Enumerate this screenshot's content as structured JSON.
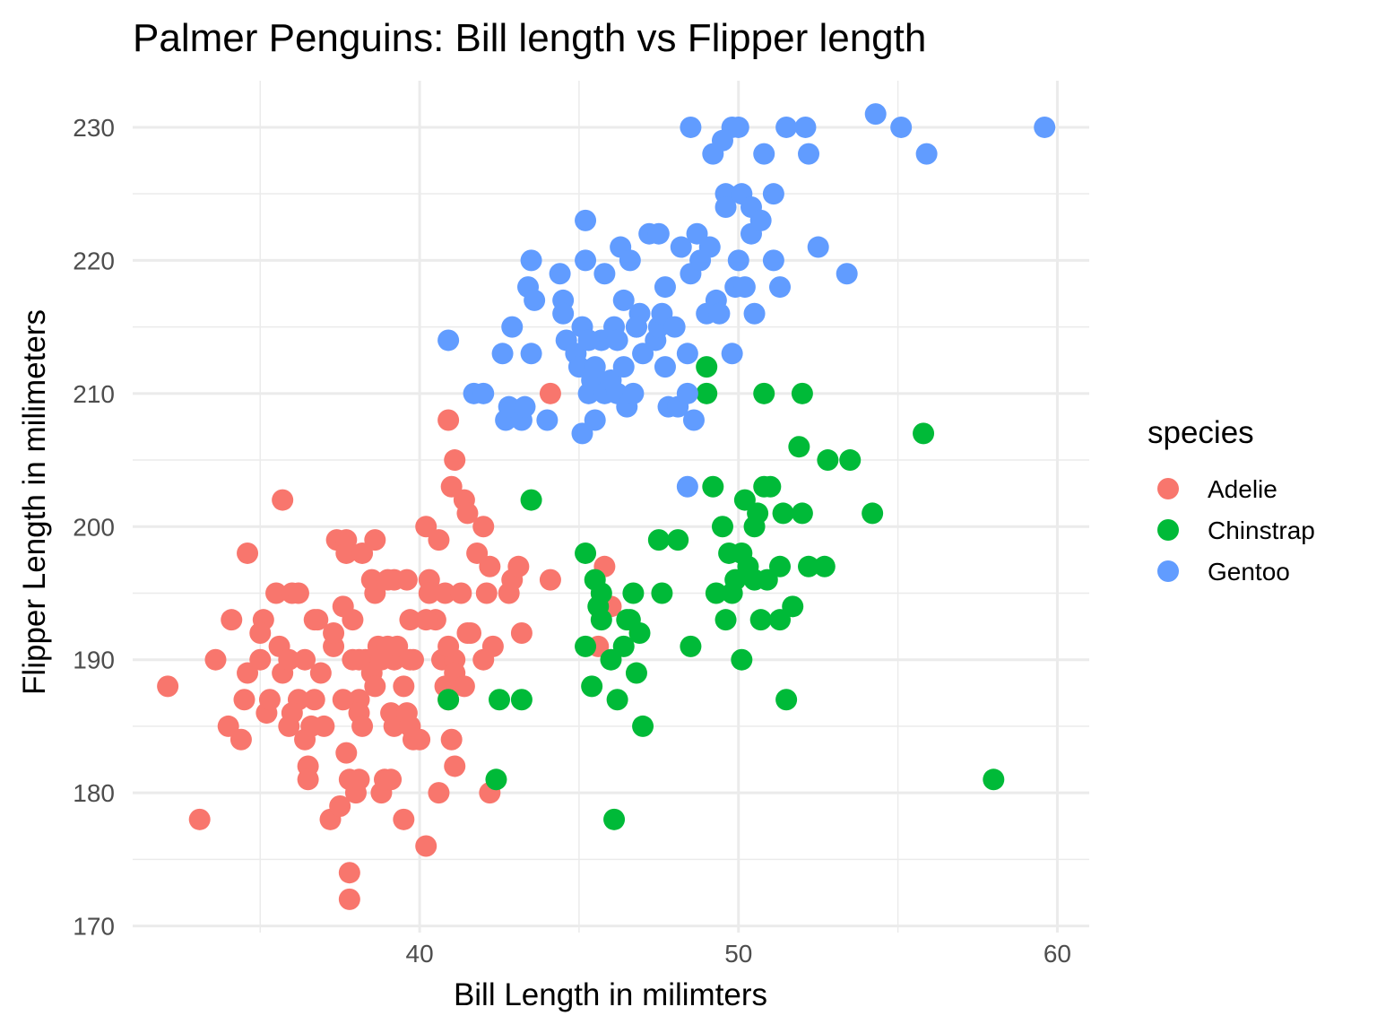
{
  "chart_data": {
    "type": "scatter",
    "title": "Palmer Penguins: Bill length vs Flipper length",
    "xlabel": "Bill Length in milimters",
    "ylabel": "Flipper Length in milimeters",
    "xlim": [
      31.0,
      61.0
    ],
    "ylim": [
      169.5,
      233.5
    ],
    "x_ticks": [
      40,
      50,
      60
    ],
    "x_minor_ticks": [
      35,
      45,
      55
    ],
    "y_ticks": [
      170,
      180,
      190,
      200,
      210,
      220,
      230
    ],
    "y_minor_ticks": [
      175,
      185,
      195,
      205,
      215,
      225
    ],
    "grid": true,
    "legend": {
      "title": "species",
      "position": "right"
    },
    "series": [
      {
        "name": "Adelie",
        "color": "#F8766D",
        "points": [
          [
            32.1,
            188
          ],
          [
            33.1,
            178
          ],
          [
            33.6,
            190
          ],
          [
            34.1,
            193
          ],
          [
            34.0,
            185
          ],
          [
            34.4,
            184
          ],
          [
            34.6,
            198
          ],
          [
            34.6,
            189
          ],
          [
            34.5,
            187
          ],
          [
            35.0,
            190
          ],
          [
            35.1,
            193
          ],
          [
            35.0,
            192
          ],
          [
            35.2,
            186
          ],
          [
            35.3,
            187
          ],
          [
            35.5,
            195
          ],
          [
            35.6,
            191
          ],
          [
            35.7,
            202
          ],
          [
            35.7,
            189
          ],
          [
            35.9,
            190
          ],
          [
            35.9,
            185
          ],
          [
            36.0,
            195
          ],
          [
            36.2,
            187
          ],
          [
            36.4,
            190
          ],
          [
            36.0,
            186
          ],
          [
            36.4,
            184
          ],
          [
            36.5,
            182
          ],
          [
            36.5,
            181
          ],
          [
            36.6,
            185
          ],
          [
            36.7,
            193
          ],
          [
            36.8,
            193
          ],
          [
            36.9,
            189
          ],
          [
            37.0,
            185
          ],
          [
            37.2,
            178
          ],
          [
            37.3,
            191
          ],
          [
            37.3,
            192
          ],
          [
            37.4,
            199
          ],
          [
            37.5,
            179
          ],
          [
            37.6,
            194
          ],
          [
            37.7,
            199
          ],
          [
            37.8,
            174
          ],
          [
            37.8,
            172
          ],
          [
            37.7,
            198
          ],
          [
            37.7,
            183
          ],
          [
            37.8,
            181
          ],
          [
            37.9,
            193
          ],
          [
            37.9,
            190
          ],
          [
            38.0,
            180
          ],
          [
            38.1,
            181
          ],
          [
            38.1,
            187
          ],
          [
            38.1,
            186
          ],
          [
            38.2,
            185
          ],
          [
            38.2,
            198
          ],
          [
            38.3,
            190
          ],
          [
            38.5,
            189
          ],
          [
            38.6,
            188
          ],
          [
            38.6,
            199
          ],
          [
            38.6,
            195
          ],
          [
            38.7,
            191
          ],
          [
            38.8,
            180
          ],
          [
            38.9,
            181
          ],
          [
            39.0,
            191
          ],
          [
            39.1,
            181
          ],
          [
            39.1,
            186
          ],
          [
            39.2,
            185
          ],
          [
            39.2,
            196
          ],
          [
            39.2,
            190
          ],
          [
            39.3,
            191
          ],
          [
            39.5,
            178
          ],
          [
            39.5,
            188
          ],
          [
            39.6,
            186
          ],
          [
            39.6,
            196
          ],
          [
            39.7,
            190
          ],
          [
            39.7,
            193
          ],
          [
            39.8,
            184
          ],
          [
            40.0,
            184
          ],
          [
            40.2,
            176
          ],
          [
            40.2,
            200
          ],
          [
            40.3,
            196
          ],
          [
            40.3,
            195
          ],
          [
            40.6,
            180
          ],
          [
            40.5,
            193
          ],
          [
            40.6,
            199
          ],
          [
            40.7,
            190
          ],
          [
            40.8,
            195
          ],
          [
            40.9,
            208
          ],
          [
            40.9,
            187
          ],
          [
            41.0,
            184
          ],
          [
            41.0,
            203
          ],
          [
            41.1,
            182
          ],
          [
            41.1,
            205
          ],
          [
            41.1,
            190
          ],
          [
            41.1,
            189
          ],
          [
            41.3,
            195
          ],
          [
            41.4,
            202
          ],
          [
            41.5,
            201
          ],
          [
            41.6,
            192
          ],
          [
            41.8,
            198
          ],
          [
            42.0,
            200
          ],
          [
            42.0,
            190
          ],
          [
            42.1,
            195
          ],
          [
            42.2,
            197
          ],
          [
            42.3,
            191
          ],
          [
            42.2,
            180
          ],
          [
            42.8,
            195
          ],
          [
            42.9,
            196
          ],
          [
            43.1,
            197
          ],
          [
            43.2,
            192
          ],
          [
            44.1,
            196
          ],
          [
            44.1,
            210
          ],
          [
            45.8,
            197
          ],
          [
            46.0,
            194
          ],
          [
            45.6,
            191
          ],
          [
            38.8,
            190
          ],
          [
            40.9,
            191
          ],
          [
            41.4,
            188
          ],
          [
            37.6,
            187
          ],
          [
            39.7,
            185
          ],
          [
            36.7,
            187
          ],
          [
            40.8,
            188
          ],
          [
            38.1,
            190
          ],
          [
            39.8,
            190
          ],
          [
            41.5,
            192
          ],
          [
            38.5,
            196
          ],
          [
            40.2,
            193
          ],
          [
            36.2,
            195
          ],
          [
            39.0,
            196
          ]
        ]
      },
      {
        "name": "Chinstrap",
        "color": "#00BA38",
        "points": [
          [
            40.9,
            187
          ],
          [
            42.4,
            181
          ],
          [
            42.5,
            187
          ],
          [
            43.2,
            187
          ],
          [
            43.5,
            202
          ],
          [
            45.2,
            198
          ],
          [
            45.2,
            191
          ],
          [
            45.4,
            188
          ],
          [
            45.5,
            196
          ],
          [
            45.6,
            194
          ],
          [
            45.7,
            195
          ],
          [
            45.7,
            193
          ],
          [
            46.0,
            190
          ],
          [
            46.1,
            178
          ],
          [
            46.2,
            187
          ],
          [
            46.4,
            191
          ],
          [
            46.5,
            193
          ],
          [
            46.6,
            193
          ],
          [
            46.7,
            195
          ],
          [
            46.8,
            189
          ],
          [
            46.9,
            192
          ],
          [
            47.0,
            185
          ],
          [
            47.5,
            199
          ],
          [
            47.6,
            195
          ],
          [
            48.1,
            199
          ],
          [
            48.5,
            191
          ],
          [
            49.0,
            212
          ],
          [
            49.0,
            210
          ],
          [
            49.2,
            203
          ],
          [
            49.3,
            195
          ],
          [
            49.5,
            200
          ],
          [
            49.6,
            193
          ],
          [
            49.7,
            198
          ],
          [
            49.8,
            195
          ],
          [
            49.9,
            196
          ],
          [
            50.1,
            190
          ],
          [
            50.2,
            202
          ],
          [
            50.3,
            197
          ],
          [
            50.5,
            200
          ],
          [
            50.6,
            201
          ],
          [
            50.7,
            193
          ],
          [
            50.8,
            203
          ],
          [
            50.8,
            210
          ],
          [
            50.9,
            196
          ],
          [
            51.0,
            203
          ],
          [
            51.3,
            197
          ],
          [
            51.3,
            193
          ],
          [
            51.4,
            201
          ],
          [
            51.5,
            187
          ],
          [
            51.7,
            194
          ],
          [
            51.9,
            206
          ],
          [
            52.0,
            210
          ],
          [
            52.0,
            201
          ],
          [
            52.2,
            197
          ],
          [
            52.7,
            197
          ],
          [
            52.8,
            205
          ],
          [
            53.5,
            205
          ],
          [
            54.2,
            201
          ],
          [
            55.8,
            207
          ],
          [
            58.0,
            181
          ],
          [
            50.1,
            198
          ],
          [
            50.5,
            196
          ]
        ]
      },
      {
        "name": "Gentoo",
        "color": "#619CFF",
        "points": [
          [
            40.9,
            214
          ],
          [
            41.7,
            210
          ],
          [
            42.0,
            210
          ],
          [
            42.6,
            213
          ],
          [
            42.7,
            208
          ],
          [
            42.8,
            209
          ],
          [
            42.9,
            215
          ],
          [
            43.2,
            208
          ],
          [
            43.3,
            209
          ],
          [
            43.4,
            218
          ],
          [
            43.5,
            213
          ],
          [
            43.6,
            217
          ],
          [
            43.5,
            220
          ],
          [
            44.0,
            208
          ],
          [
            44.4,
            219
          ],
          [
            44.5,
            217
          ],
          [
            44.5,
            216
          ],
          [
            44.6,
            214
          ],
          [
            44.9,
            213
          ],
          [
            45.0,
            212
          ],
          [
            45.1,
            215
          ],
          [
            45.1,
            207
          ],
          [
            45.2,
            223
          ],
          [
            45.2,
            220
          ],
          [
            45.3,
            210
          ],
          [
            45.4,
            211
          ],
          [
            45.5,
            212
          ],
          [
            45.5,
            208
          ],
          [
            45.7,
            214
          ],
          [
            45.8,
            210
          ],
          [
            45.8,
            219
          ],
          [
            46.0,
            211
          ],
          [
            46.1,
            215
          ],
          [
            46.2,
            210
          ],
          [
            46.2,
            214
          ],
          [
            46.3,
            221
          ],
          [
            46.4,
            212
          ],
          [
            46.4,
            217
          ],
          [
            46.5,
            209
          ],
          [
            46.6,
            220
          ],
          [
            46.7,
            210
          ],
          [
            46.8,
            215
          ],
          [
            46.9,
            216
          ],
          [
            47.0,
            213
          ],
          [
            47.2,
            222
          ],
          [
            47.4,
            214
          ],
          [
            47.5,
            215
          ],
          [
            47.5,
            222
          ],
          [
            47.6,
            216
          ],
          [
            47.7,
            212
          ],
          [
            47.8,
            209
          ],
          [
            47.7,
            218
          ],
          [
            48.0,
            215
          ],
          [
            48.1,
            209
          ],
          [
            48.2,
            221
          ],
          [
            48.4,
            210
          ],
          [
            48.4,
            213
          ],
          [
            48.5,
            219
          ],
          [
            48.5,
            230
          ],
          [
            48.6,
            208
          ],
          [
            48.7,
            222
          ],
          [
            48.8,
            220
          ],
          [
            49.0,
            216
          ],
          [
            49.1,
            221
          ],
          [
            49.2,
            228
          ],
          [
            49.3,
            217
          ],
          [
            49.4,
            216
          ],
          [
            49.5,
            229
          ],
          [
            49.6,
            225
          ],
          [
            49.6,
            224
          ],
          [
            49.8,
            230
          ],
          [
            49.8,
            213
          ],
          [
            49.9,
            218
          ],
          [
            50.0,
            230
          ],
          [
            50.0,
            220
          ],
          [
            50.1,
            225
          ],
          [
            50.2,
            218
          ],
          [
            50.4,
            224
          ],
          [
            50.4,
            222
          ],
          [
            50.5,
            216
          ],
          [
            50.7,
            223
          ],
          [
            50.8,
            228
          ],
          [
            51.1,
            225
          ],
          [
            51.1,
            220
          ],
          [
            51.3,
            218
          ],
          [
            51.5,
            230
          ],
          [
            52.1,
            230
          ],
          [
            52.2,
            228
          ],
          [
            52.5,
            221
          ],
          [
            53.4,
            219
          ],
          [
            54.3,
            231
          ],
          [
            55.1,
            230
          ],
          [
            55.9,
            228
          ],
          [
            59.6,
            230
          ],
          [
            48.4,
            203
          ],
          [
            45.3,
            214
          ],
          [
            46.8,
            215
          ]
        ]
      }
    ]
  }
}
